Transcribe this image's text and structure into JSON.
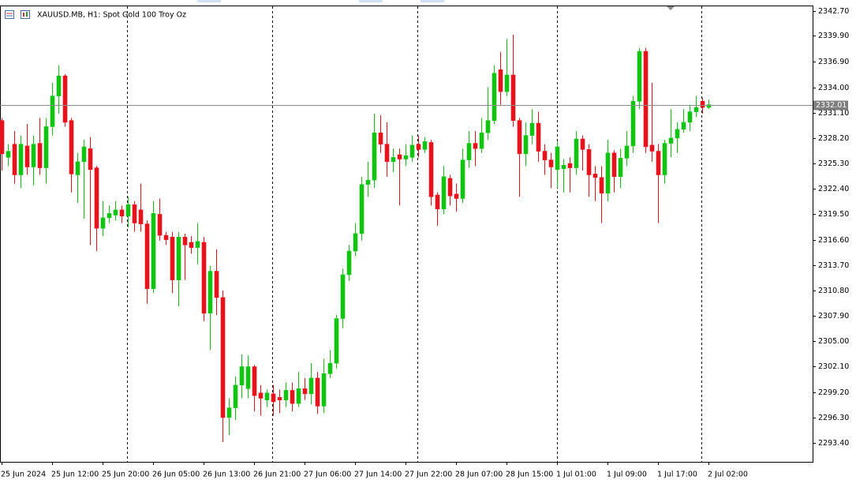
{
  "chart_data": {
    "type": "candlestick",
    "title": "XAUUSD.MB, H1:  Spot Gold 100 Troy Oz",
    "categories": [
      "25 Jun 2024",
      null,
      null,
      null,
      null,
      null,
      null,
      null,
      "25 Jun 12:00",
      null,
      null,
      null,
      null,
      null,
      null,
      null,
      "25 Jun 20:00",
      null,
      null,
      null,
      null,
      null,
      null,
      null,
      "26 Jun 05:00",
      null,
      null,
      null,
      null,
      null,
      null,
      null,
      "26 Jun 13:00",
      null,
      null,
      null,
      null,
      null,
      null,
      null,
      "26 Jun 21:00",
      null,
      null,
      null,
      null,
      null,
      null,
      null,
      "27 Jun 06:00",
      null,
      null,
      null,
      null,
      null,
      null,
      null,
      "27 Jun 14:00",
      null,
      null,
      null,
      null,
      null,
      null,
      null,
      "27 Jun 22:00",
      null,
      null,
      null,
      null,
      null,
      null,
      null,
      "28 Jun 07:00",
      null,
      null,
      null,
      null,
      null,
      null,
      null,
      "28 Jun 15:00",
      null,
      null,
      null,
      null,
      null,
      null,
      null,
      "1 Jul 01:00",
      null,
      null,
      null,
      null,
      null,
      null,
      null,
      "1 Jul 09:00",
      null,
      null,
      null,
      null,
      null,
      null,
      null,
      "1 Jul 17:00",
      null,
      null,
      null,
      null,
      null,
      null,
      null,
      "2 Jul 02:00"
    ],
    "open": [
      2330.2,
      2326.0,
      2327.5,
      2324.0,
      2327.3,
      2324.9,
      2327.6,
      2324.8,
      2329.5,
      2333.0,
      2335.3,
      2330.2,
      2324.0,
      2325.5,
      2327.0,
      2324.8,
      2317.9,
      2319.1,
      2319.4,
      2320.0,
      2319.3,
      2320.6,
      2320.0,
      2318.4,
      2311.0,
      2319.5,
      2317.1,
      2316.9,
      2312.0,
      2316.9,
      2316.3,
      2315.7,
      2316.3,
      2308.2,
      2313.0,
      2310.0,
      2296.3,
      2297.4,
      2300.0,
      2299.6,
      2302.1,
      2299.1,
      2298.3,
      2299.0,
      2298.6,
      2298.3,
      2299.4,
      2297.9,
      2299.6,
      2299.0,
      2300.8,
      2297.6,
      2301.3,
      2302.5,
      2307.6,
      2312.6,
      2315.3,
      2317.3,
      2322.9,
      2323.4,
      2328.8,
      2327.5,
      2325.5,
      2326.3,
      2325.8,
      2326.0,
      2327.5,
      2326.9,
      2327.7,
      2321.7,
      2320.1,
      2323.6,
      2321.8,
      2321.3,
      2325.7,
      2327.6,
      2327.0,
      2328.8,
      2330.2,
      2336.0,
      2333.5,
      2335.4,
      2330.2,
      2326.4,
      2328.5,
      2329.9,
      2326.7,
      2325.7,
      2324.6,
      2324.7,
      2325.3,
      2324.8,
      2328.1,
      2326.9,
      2324.1,
      2323.7,
      2321.9,
      2326.5,
      2323.8,
      2325.9,
      2327.3,
      2332.4,
      2338.1,
      2327.4,
      2326.7,
      2324.0,
      2327.6,
      2328.2,
      2329.2,
      2330.0,
      2331.2,
      2332.4,
      2331.7
    ],
    "high": [
      2330.5,
      2327.5,
      2329.0,
      2328.5,
      2329.8,
      2328.5,
      2330.5,
      2330.5,
      2334.5,
      2336.5,
      2335.5,
      2330.5,
      2326.5,
      2328.0,
      2328.3,
      2325.0,
      2321.0,
      2320.5,
      2321.0,
      2320.5,
      2321.5,
      2321.0,
      2323.0,
      2318.8,
      2321.0,
      2321.3,
      2317.5,
      2317.5,
      2317.5,
      2317.3,
      2317.0,
      2318.5,
      2316.9,
      2313.6,
      2315.5,
      2310.8,
      2298.5,
      2301.0,
      2303.5,
      2303.4,
      2302.3,
      2300.0,
      2299.5,
      2300.0,
      2299.5,
      2300.3,
      2300.3,
      2301.5,
      2300.8,
      2302.5,
      2301.5,
      2303.0,
      2304.0,
      2308.0,
      2313.3,
      2316.0,
      2318.5,
      2323.8,
      2325.5,
      2331.0,
      2330.8,
      2330.0,
      2327.0,
      2327.0,
      2327.5,
      2328.5,
      2328.5,
      2328.3,
      2328.0,
      2322.0,
      2325.0,
      2324.0,
      2323.0,
      2327.0,
      2329.0,
      2329.0,
      2330.5,
      2334.0,
      2336.5,
      2338.0,
      2339.5,
      2340.0,
      2330.5,
      2330.0,
      2331.5,
      2331.2,
      2327.5,
      2326.5,
      2327.8,
      2325.8,
      2326.0,
      2329.0,
      2328.5,
      2327.5,
      2325.0,
      2325.0,
      2328.0,
      2326.8,
      2327.0,
      2329.0,
      2333.0,
      2338.5,
      2338.5,
      2334.5,
      2327.5,
      2328.0,
      2331.5,
      2330.0,
      2331.5,
      2332.0,
      2333.0,
      2332.8,
      2332.6
    ],
    "low": [
      2324.5,
      2325.0,
      2323.0,
      2322.5,
      2324.0,
      2322.8,
      2324.0,
      2323.0,
      2328.5,
      2331.0,
      2329.5,
      2322.0,
      2320.8,
      2319.0,
      2316.0,
      2315.3,
      2317.0,
      2318.5,
      2318.8,
      2318.5,
      2318.0,
      2317.5,
      2317.5,
      2309.3,
      2310.5,
      2316.5,
      2316.0,
      2310.5,
      2309.0,
      2312.0,
      2315.0,
      2313.8,
      2307.3,
      2304.0,
      2308.0,
      2293.5,
      2294.3,
      2296.0,
      2298.5,
      2298.5,
      2297.0,
      2296.5,
      2297.5,
      2296.5,
      2296.8,
      2297.5,
      2297.0,
      2297.5,
      2298.3,
      2297.8,
      2296.7,
      2296.8,
      2300.8,
      2301.9,
      2306.5,
      2311.9,
      2314.7,
      2316.5,
      2321.5,
      2322.5,
      2326.5,
      2323.8,
      2324.3,
      2320.5,
      2325.0,
      2325.5,
      2326.0,
      2326.5,
      2320.5,
      2318.2,
      2319.5,
      2320.5,
      2319.8,
      2320.8,
      2324.8,
      2325.0,
      2326.5,
      2328.0,
      2329.8,
      2332.0,
      2333.0,
      2329.5,
      2321.5,
      2325.0,
      2327.5,
      2325.5,
      2324.0,
      2322.5,
      2322.5,
      2322.0,
      2322.0,
      2324.0,
      2324.5,
      2321.5,
      2321.0,
      2318.5,
      2321.0,
      2322.0,
      2322.5,
      2325.0,
      2326.5,
      2331.5,
      2326.5,
      2325.5,
      2318.5,
      2323.0,
      2326.0,
      2326.5,
      2328.8,
      2329.0,
      2330.6,
      2331.0,
      2331.5
    ],
    "close": [
      2326.4,
      2326.7,
      2324.0,
      2327.5,
      2324.9,
      2327.5,
      2324.8,
      2329.5,
      2333.0,
      2335.3,
      2330.0,
      2324.1,
      2325.5,
      2327.2,
      2324.6,
      2317.9,
      2319.1,
      2319.6,
      2320.0,
      2319.3,
      2320.6,
      2318.5,
      2318.4,
      2311.0,
      2319.6,
      2317.1,
      2316.6,
      2312.0,
      2316.9,
      2316.0,
      2315.7,
      2316.4,
      2308.2,
      2313.0,
      2310.0,
      2296.3,
      2297.4,
      2300.0,
      2302.1,
      2302.1,
      2298.8,
      2298.5,
      2299.1,
      2298.1,
      2298.3,
      2299.4,
      2297.9,
      2299.6,
      2299.0,
      2300.8,
      2297.6,
      2301.3,
      2302.5,
      2307.6,
      2312.6,
      2315.3,
      2317.3,
      2322.9,
      2323.4,
      2328.8,
      2327.5,
      2325.5,
      2326.0,
      2325.8,
      2326.2,
      2327.4,
      2326.9,
      2327.8,
      2321.5,
      2320.1,
      2323.8,
      2321.6,
      2321.3,
      2325.7,
      2327.6,
      2327.0,
      2328.8,
      2330.2,
      2335.6,
      2333.5,
      2335.4,
      2330.2,
      2326.4,
      2328.5,
      2329.9,
      2326.7,
      2325.7,
      2324.9,
      2327.2,
      2325.1,
      2324.8,
      2328.1,
      2326.9,
      2324.0,
      2323.7,
      2321.9,
      2326.5,
      2323.8,
      2325.9,
      2327.3,
      2332.4,
      2338.1,
      2327.2,
      2326.7,
      2324.0,
      2327.6,
      2328.2,
      2329.2,
      2330.0,
      2331.2,
      2331.7,
      2331.7,
      2332.01
    ],
    "up_color": "#12c412",
    "down_color": "#e8121c",
    "ylim": [
      2291.24,
      2343.24
    ],
    "yticks": [
      {
        "value": 2342.7,
        "label": "2342.70"
      },
      {
        "value": 2339.9,
        "label": "2339.90"
      },
      {
        "value": 2336.9,
        "label": "2336.90"
      },
      {
        "value": 2334.0,
        "label": "2334.00"
      },
      {
        "value": 2331.1,
        "label": "2331.10"
      },
      {
        "value": 2328.2,
        "label": "2328.20"
      },
      {
        "value": 2325.3,
        "label": "2325.30"
      },
      {
        "value": 2322.4,
        "label": "2322.40"
      },
      {
        "value": 2319.5,
        "label": "2319.50"
      },
      {
        "value": 2316.6,
        "label": "2316.60"
      },
      {
        "value": 2313.7,
        "label": "2313.70"
      },
      {
        "value": 2310.8,
        "label": "2310.80"
      },
      {
        "value": 2307.9,
        "label": "2307.90"
      },
      {
        "value": 2305.0,
        "label": "2305.00"
      },
      {
        "value": 2302.1,
        "label": "2302.10"
      },
      {
        "value": 2299.2,
        "label": "2299.20"
      },
      {
        "value": 2296.3,
        "label": "2296.30"
      },
      {
        "value": 2293.4,
        "label": "2293.40"
      }
    ],
    "last_price": 2332.01,
    "grid": false
  }
}
